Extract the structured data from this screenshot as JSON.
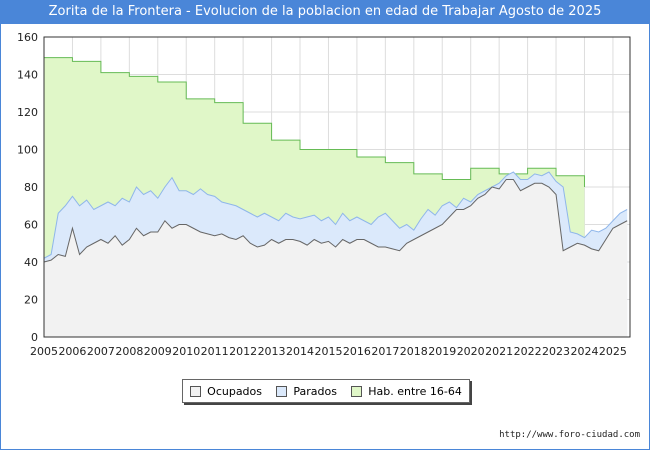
{
  "header": {
    "title": "Zorita de la Frontera - Evolucion de la poblacion en edad de Trabajar Agosto de 2025"
  },
  "footer": {
    "source": "http://www.foro-ciudad.com"
  },
  "colors": {
    "title_bg": "#4a86d8",
    "ocupados_fill": "#f2f2f2",
    "ocupados_line": "#666666",
    "parados_fill": "#dbe9fb",
    "parados_line": "#8fb6ea",
    "hab_fill": "#e0f7c8",
    "hab_line": "#66bb55",
    "grid": "#dddddd"
  },
  "legend": [
    {
      "label": "Ocupados",
      "color": "#f2f2f2"
    },
    {
      "label": "Parados",
      "color": "#dbe9fb"
    },
    {
      "label": "Hab. entre 16-64",
      "color": "#e0f7c8"
    }
  ],
  "chart_data": {
    "type": "area",
    "x_ticks": [
      "2005",
      "2006",
      "2007",
      "2008",
      "2009",
      "2010",
      "2011",
      "2012",
      "2013",
      "2014",
      "2015",
      "2016",
      "2017",
      "2018",
      "2019",
      "2020",
      "2021",
      "2022",
      "2023",
      "2024",
      "2025"
    ],
    "y_ticks": [
      0,
      20,
      40,
      60,
      80,
      100,
      120,
      140,
      160
    ],
    "xlim": [
      2005,
      2025.6
    ],
    "ylim": [
      0,
      160
    ],
    "grid": true,
    "legend_position": "bottom",
    "series": [
      {
        "name": "Hab. entre 16-64",
        "kind": "step",
        "x": [
          2005,
          2006,
          2007,
          2008,
          2009,
          2010,
          2011,
          2012,
          2013,
          2014,
          2015,
          2016,
          2017,
          2018,
          2019,
          2020,
          2021,
          2022,
          2023,
          2024
        ],
        "y": [
          149,
          147,
          141,
          139,
          136,
          127,
          125,
          114,
          105,
          100,
          100,
          96,
          93,
          87,
          84,
          90,
          87,
          90,
          86,
          null
        ]
      },
      {
        "name": "Parados",
        "x": [
          2005.0,
          2005.25,
          2005.5,
          2005.75,
          2006.0,
          2006.25,
          2006.5,
          2006.75,
          2007.0,
          2007.25,
          2007.5,
          2007.75,
          2008.0,
          2008.25,
          2008.5,
          2008.75,
          2009.0,
          2009.25,
          2009.5,
          2009.75,
          2010.0,
          2010.25,
          2010.5,
          2010.75,
          2011.0,
          2011.25,
          2011.5,
          2011.75,
          2012.0,
          2012.25,
          2012.5,
          2012.75,
          2013.0,
          2013.25,
          2013.5,
          2013.75,
          2014.0,
          2014.25,
          2014.5,
          2014.75,
          2015.0,
          2015.25,
          2015.5,
          2015.75,
          2016.0,
          2016.25,
          2016.5,
          2016.75,
          2017.0,
          2017.25,
          2017.5,
          2017.75,
          2018.0,
          2018.25,
          2018.5,
          2018.75,
          2019.0,
          2019.25,
          2019.5,
          2019.75,
          2020.0,
          2020.25,
          2020.5,
          2020.75,
          2021.0,
          2021.25,
          2021.5,
          2021.75,
          2022.0,
          2022.25,
          2022.5,
          2022.75,
          2023.0,
          2023.25,
          2023.5,
          2023.75,
          2024.0,
          2024.25,
          2024.5,
          2024.75,
          2025.0,
          2025.25,
          2025.5
        ],
        "y": [
          42,
          44,
          66,
          70,
          75,
          70,
          73,
          68,
          70,
          72,
          70,
          74,
          72,
          80,
          76,
          78,
          74,
          80,
          85,
          78,
          78,
          76,
          79,
          76,
          75,
          72,
          71,
          70,
          68,
          66,
          64,
          66,
          64,
          62,
          66,
          64,
          63,
          64,
          65,
          62,
          64,
          60,
          66,
          62,
          64,
          62,
          60,
          64,
          66,
          62,
          58,
          60,
          57,
          63,
          68,
          65,
          70,
          72,
          69,
          74,
          72,
          76,
          78,
          80,
          82,
          86,
          88,
          84,
          84,
          87,
          86,
          88,
          83,
          80,
          56,
          55,
          53,
          57,
          56,
          58,
          62,
          66,
          68
        ]
      },
      {
        "name": "Ocupados",
        "x": [
          2005.0,
          2005.25,
          2005.5,
          2005.75,
          2006.0,
          2006.25,
          2006.5,
          2006.75,
          2007.0,
          2007.25,
          2007.5,
          2007.75,
          2008.0,
          2008.25,
          2008.5,
          2008.75,
          2009.0,
          2009.25,
          2009.5,
          2009.75,
          2010.0,
          2010.25,
          2010.5,
          2010.75,
          2011.0,
          2011.25,
          2011.5,
          2011.75,
          2012.0,
          2012.25,
          2012.5,
          2012.75,
          2013.0,
          2013.25,
          2013.5,
          2013.75,
          2014.0,
          2014.25,
          2014.5,
          2014.75,
          2015.0,
          2015.25,
          2015.5,
          2015.75,
          2016.0,
          2016.25,
          2016.5,
          2016.75,
          2017.0,
          2017.25,
          2017.5,
          2017.75,
          2018.0,
          2018.25,
          2018.5,
          2018.75,
          2019.0,
          2019.25,
          2019.5,
          2019.75,
          2020.0,
          2020.25,
          2020.5,
          2020.75,
          2021.0,
          2021.25,
          2021.5,
          2021.75,
          2022.0,
          2022.25,
          2022.5,
          2022.75,
          2023.0,
          2023.25,
          2023.5,
          2023.75,
          2024.0,
          2024.25,
          2024.5,
          2024.75,
          2025.0,
          2025.25,
          2025.5
        ],
        "y": [
          40,
          41,
          44,
          43,
          58,
          44,
          48,
          50,
          52,
          50,
          54,
          49,
          52,
          58,
          54,
          56,
          56,
          62,
          58,
          60,
          60,
          58,
          56,
          55,
          54,
          55,
          53,
          52,
          54,
          50,
          48,
          49,
          52,
          50,
          52,
          52,
          51,
          49,
          52,
          50,
          51,
          48,
          52,
          50,
          52,
          52,
          50,
          48,
          48,
          47,
          46,
          50,
          52,
          54,
          56,
          58,
          60,
          64,
          68,
          68,
          70,
          74,
          76,
          80,
          79,
          84,
          84,
          78,
          80,
          82,
          82,
          80,
          76,
          46,
          48,
          50,
          49,
          47,
          46,
          52,
          58,
          60,
          62
        ]
      }
    ]
  }
}
